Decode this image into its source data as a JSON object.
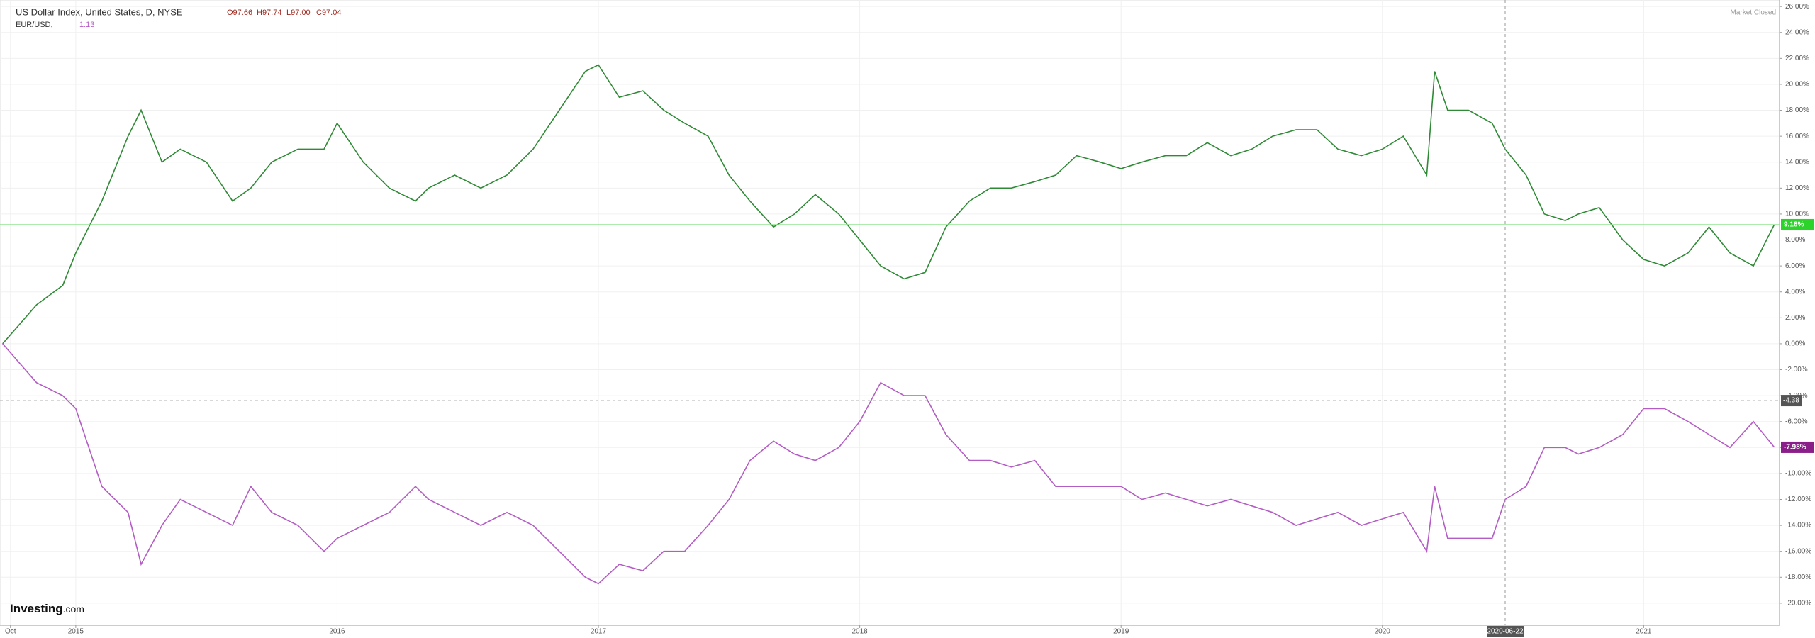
{
  "chart_data": {
    "type": "line",
    "header": {
      "ohlc": [
        "O97.66",
        "H97.74",
        "L97.00",
        "C97.04"
      ],
      "secondary_value": "1.13",
      "status": "Market Closed",
      "brand": "Investing",
      "brand_suffix": ".com"
    },
    "x": [
      2014.72,
      2014.85,
      2014.95,
      2015.0,
      2015.1,
      2015.2,
      2015.25,
      2015.33,
      2015.4,
      2015.5,
      2015.6,
      2015.67,
      2015.75,
      2015.85,
      2015.95,
      2016.0,
      2016.1,
      2016.2,
      2016.3,
      2016.35,
      2016.45,
      2016.55,
      2016.65,
      2016.75,
      2016.85,
      2016.95,
      2017.0,
      2017.08,
      2017.17,
      2017.25,
      2017.33,
      2017.42,
      2017.5,
      2017.58,
      2017.67,
      2017.75,
      2017.83,
      2017.92,
      2018.0,
      2018.08,
      2018.17,
      2018.25,
      2018.33,
      2018.42,
      2018.5,
      2018.58,
      2018.67,
      2018.75,
      2018.83,
      2018.92,
      2019.0,
      2019.08,
      2019.17,
      2019.25,
      2019.33,
      2019.42,
      2019.5,
      2019.58,
      2019.67,
      2019.75,
      2019.83,
      2019.92,
      2020.0,
      2020.08,
      2020.17,
      2020.2,
      2020.25,
      2020.33,
      2020.42,
      2020.47,
      2020.55,
      2020.62,
      2020.7,
      2020.75,
      2020.83,
      2020.92,
      2021.0,
      2021.08,
      2021.17,
      2021.25,
      2021.33,
      2021.42,
      2021.5
    ],
    "series": [
      {
        "name": "US Dollar Index, United States, D, NYSE",
        "color": "#2f8a36",
        "last_label": "9.18%",
        "values": [
          0,
          3,
          4.5,
          7,
          11,
          16,
          18,
          14,
          15,
          14,
          11,
          12,
          14,
          15,
          15,
          17,
          14,
          12,
          11,
          12,
          13,
          12,
          13,
          15,
          18,
          21,
          21.5,
          19,
          19.5,
          18,
          17,
          16,
          13,
          11,
          9,
          10,
          11.5,
          10,
          8,
          6,
          5,
          5.5,
          9,
          11,
          12,
          12,
          12.5,
          13,
          14.5,
          14,
          13.5,
          14,
          14.5,
          14.5,
          15.5,
          14.5,
          15,
          16,
          16.5,
          16.5,
          15,
          14.5,
          15,
          16,
          13,
          21,
          18,
          18,
          17,
          15,
          13,
          10,
          9.5,
          10,
          10.5,
          8,
          6.5,
          6,
          7,
          9,
          7,
          6,
          9.18
        ]
      },
      {
        "name": "EUR/USD,",
        "color": "#b35cc4",
        "last_label": "-7.98%",
        "values": [
          0,
          -3,
          -4,
          -5,
          -11,
          -13,
          -17,
          -14,
          -12,
          -13,
          -14,
          -11,
          -13,
          -14,
          -16,
          -15,
          -14,
          -13,
          -11,
          -12,
          -13,
          -14,
          -13,
          -14,
          -16,
          -18,
          -18.5,
          -17,
          -17.5,
          -16,
          -16,
          -14,
          -12,
          -9,
          -7.5,
          -8.5,
          -9,
          -8,
          -6,
          -3,
          -4,
          -4,
          -7,
          -9,
          -9,
          -9.5,
          -9,
          -11,
          -11,
          -11,
          -11,
          -12,
          -11.5,
          -12,
          -12.5,
          -12,
          -12.5,
          -13,
          -14,
          -13.5,
          -13,
          -14,
          -13.5,
          -13,
          -16,
          -11,
          -15,
          -15,
          -15,
          -12,
          -11,
          -8,
          -8,
          -8.5,
          -8,
          -7,
          -5,
          -5,
          -6,
          -7,
          -8,
          -6,
          -7.98
        ]
      }
    ],
    "crosshair": {
      "x": {
        "value": 2020.47,
        "label": "2020-06-22"
      },
      "y": -4.38
    },
    "xlim": [
      2014.71,
      2021.52
    ],
    "xticks": [
      {
        "value": 2014.75,
        "label": "Oct"
      },
      2015,
      2016,
      2017,
      2018,
      2019,
      2020,
      2021
    ],
    "ylim": [
      -21.7,
      26.5
    ],
    "yticks": [
      {
        "value": 26,
        "label": "26.00%"
      },
      {
        "value": 24,
        "label": "24.00%"
      },
      {
        "value": 22,
        "label": "22.00%"
      },
      {
        "value": 20,
        "label": "20.00%"
      },
      {
        "value": 18,
        "label": "18.00%"
      },
      {
        "value": 16,
        "label": "16.00%"
      },
      {
        "value": 14,
        "label": "14.00%"
      },
      {
        "value": 12,
        "label": "12.00%"
      },
      {
        "value": 10,
        "label": "10.00%"
      },
      {
        "value": 8,
        "label": "8.00%"
      },
      {
        "value": 6,
        "label": "6.00%"
      },
      {
        "value": 4,
        "label": "4.00%"
      },
      {
        "value": 2,
        "label": "2.00%"
      },
      {
        "value": 0,
        "label": "0.00%"
      },
      {
        "value": -2,
        "label": "-2.00%"
      },
      {
        "value": -4,
        "label": "-4.00%"
      },
      {
        "value": -6,
        "label": "-6.00%"
      },
      {
        "value": -8,
        "label": "-8.00%"
      },
      {
        "value": -10,
        "label": "-10.00%"
      },
      {
        "value": -12,
        "label": "-12.00%"
      },
      {
        "value": -14,
        "label": "-14.00%"
      },
      {
        "value": -16,
        "label": "-16.00%"
      },
      {
        "value": -18,
        "label": "-18.00%"
      },
      {
        "value": -20,
        "label": "-20.00%"
      }
    ],
    "grid": true
  }
}
